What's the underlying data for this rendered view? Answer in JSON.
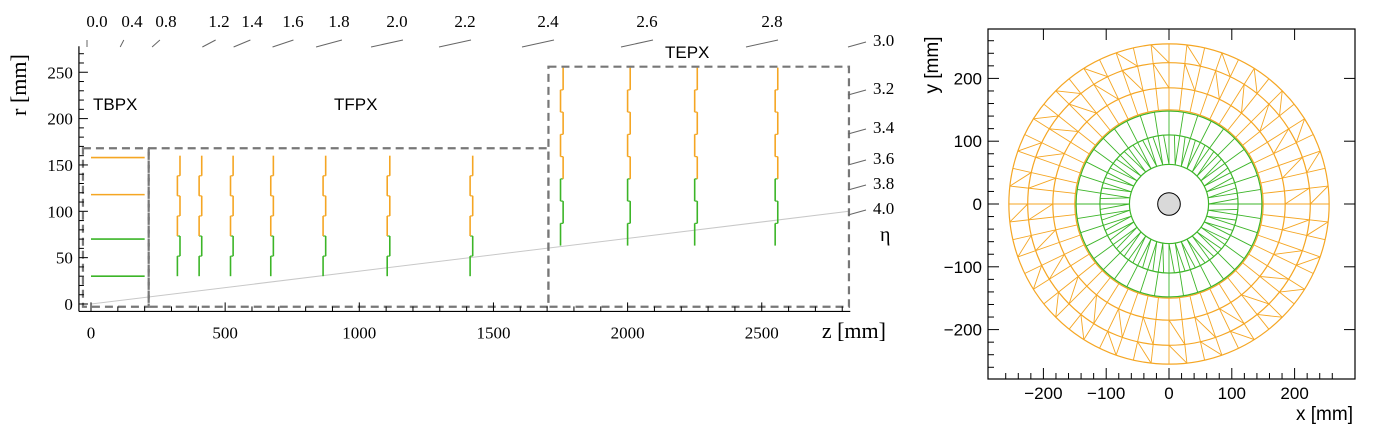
{
  "rz_view": {
    "xlabel": "z [mm]",
    "ylabel": "r [mm]",
    "eta_symbol": "η",
    "x_range": [
      -45,
      2830
    ],
    "y_range": [
      -8,
      278
    ],
    "x_ticks": [
      0,
      500,
      1000,
      1500,
      2000,
      2500
    ],
    "y_ticks": [
      0,
      50,
      100,
      150,
      200,
      250
    ],
    "eta_top": [
      "0.0",
      "0.4",
      "0.8",
      "1.2",
      "1.4",
      "1.6",
      "1.8",
      "2.0",
      "2.2",
      "2.4",
      "2.6",
      "2.8"
    ],
    "eta_right": [
      "3.0",
      "3.2",
      "3.4",
      "3.6",
      "3.8",
      "4.0"
    ],
    "regions": [
      {
        "label": "TBPX",
        "z": [
          -30,
          215
        ],
        "r": [
          -3,
          168
        ]
      },
      {
        "label": "TFPX",
        "z": [
          215,
          1705
        ],
        "r": [
          -3,
          168
        ]
      },
      {
        "label": "TEPX",
        "z": [
          1705,
          2825
        ],
        "r": [
          -3,
          256
        ]
      }
    ],
    "colors": {
      "outer": "#f5a623",
      "inner": "#3cb528",
      "box": "#777777",
      "eta_line": "#c8c8c8"
    },
    "barrel_layers": [
      {
        "r": 30,
        "z_max": 200,
        "color": "inner"
      },
      {
        "r": 70,
        "z_max": 200,
        "color": "inner"
      },
      {
        "r": 118,
        "z_max": 200,
        "color": "outer"
      },
      {
        "r": 158,
        "z_max": 200,
        "color": "outer"
      }
    ],
    "tfpx_disks_z": [
      322,
      403,
      520,
      670,
      865,
      1104,
      1413
    ],
    "tfpx_r": [
      30,
      160
    ],
    "tepx_disks_z": [
      1750,
      2000,
      2250,
      2550
    ],
    "tepx_r": [
      63,
      255
    ],
    "eta_line": {
      "z": [
        0,
        2825
      ],
      "r": [
        0,
        100
      ]
    }
  },
  "xy_view": {
    "xlabel": "x [mm]",
    "ylabel": "y [mm]",
    "range": [
      -280,
      280
    ],
    "ticks": [
      -200,
      -100,
      0,
      100,
      200
    ],
    "tick_labels": [
      "−200",
      "−100",
      "0",
      "100",
      "200"
    ],
    "beam_pipe_r": 18,
    "beam_pipe_color": "#d9d9d9",
    "green_rings_r": [
      63,
      110,
      148
    ],
    "orange_rings_r": [
      150,
      185,
      225,
      255
    ],
    "green_modules": 40,
    "orange_modules": 56
  }
}
